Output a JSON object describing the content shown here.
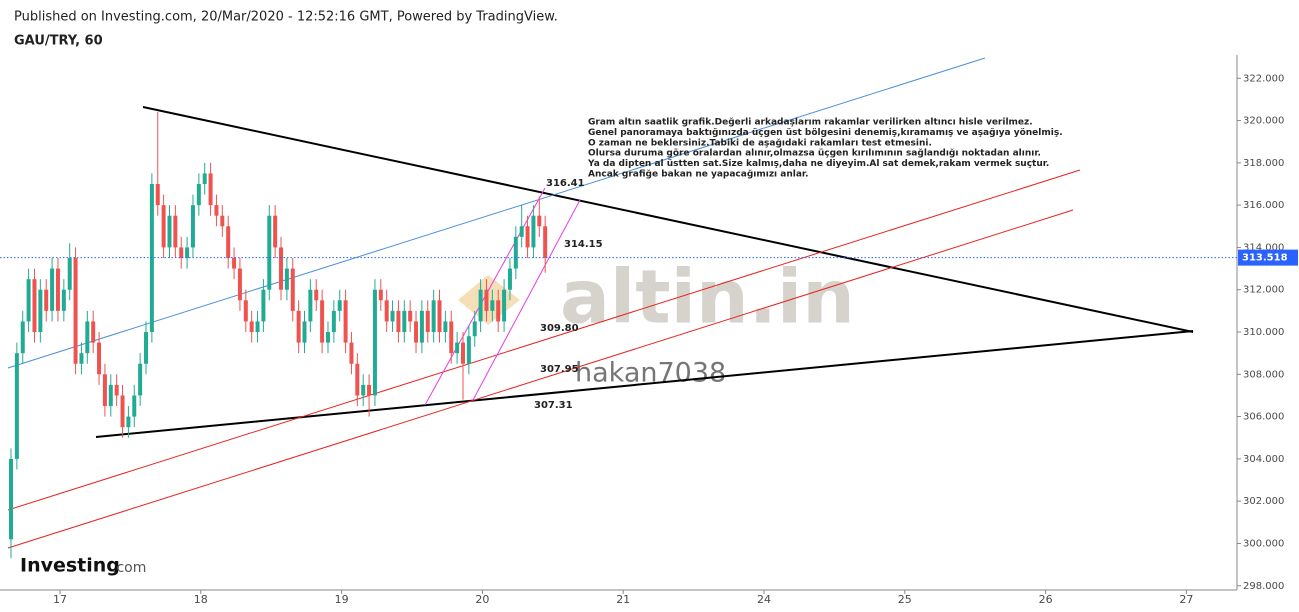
{
  "header": {
    "published": "Published on Investing.com, 20/Mar/2020 - 12:52:16 GMT, Powered by TradingView.",
    "symbol": "GAU/TRY, 60"
  },
  "watermark": "altin.in",
  "author": "hakan7038",
  "branding": [
    "Investing",
    ".com"
  ],
  "chart_data": {
    "type": "candlestick",
    "open": [
      300.2,
      304,
      309,
      310.5,
      312.5,
      310,
      312,
      311,
      313,
      311,
      312,
      313.5,
      308.5,
      309,
      310.5,
      309.5,
      308,
      306.5,
      307.5,
      307,
      305.5,
      306,
      307,
      308.5,
      310,
      317,
      316,
      314,
      315.5,
      314,
      313.5,
      314,
      316,
      317,
      317.5,
      316,
      315.5,
      315,
      313.5,
      313,
      311.5,
      310.5,
      310,
      310.5,
      312,
      315.5,
      314,
      312,
      313,
      311,
      309.5,
      310.5,
      312,
      311.5,
      309.5,
      310,
      311,
      311.5,
      309.5,
      308.5,
      307,
      307.5,
      307,
      312,
      311.5,
      310.5,
      311,
      310,
      311,
      310.5,
      309.5,
      311,
      310,
      311.5,
      310,
      310.5,
      309,
      309.5,
      308.5,
      309.8,
      310.5,
      312,
      311,
      311.5,
      310.5,
      312,
      313,
      314.5,
      315,
      314,
      315.5,
      315
    ],
    "high": [
      304.5,
      309.5,
      311,
      313,
      313,
      312.5,
      312.5,
      313.5,
      313.5,
      312.5,
      314.2,
      314,
      309.5,
      311,
      311,
      310,
      308.5,
      308,
      308,
      307.5,
      306.5,
      307.5,
      309,
      310.5,
      317.5,
      320.4,
      316.5,
      316,
      316,
      314.5,
      314.5,
      316.5,
      317.5,
      318,
      318,
      316.5,
      316,
      315.5,
      314,
      313.5,
      312,
      311,
      311,
      312.5,
      316,
      316,
      314.5,
      313.5,
      313.5,
      311.5,
      311,
      312.5,
      312.5,
      312,
      310.5,
      311.5,
      312,
      312,
      310,
      309,
      308,
      308,
      312.5,
      312.5,
      312,
      311.5,
      311.5,
      311.5,
      311.5,
      311,
      311.5,
      311.5,
      312,
      312,
      311,
      311,
      310,
      310,
      310.3,
      311,
      312.5,
      312.5,
      312,
      312,
      312.5,
      313.5,
      315,
      316,
      315.5,
      316,
      316.41,
      315.5
    ],
    "low": [
      299.3,
      303.5,
      308.5,
      310,
      309.5,
      309.5,
      310.5,
      310.5,
      310.5,
      310.5,
      311.5,
      308,
      308,
      308.5,
      309,
      307.5,
      306,
      306,
      306.5,
      305,
      305,
      305.5,
      306.5,
      308,
      309.5,
      315.5,
      313.5,
      313.5,
      313.5,
      313,
      313,
      313.5,
      315.5,
      316.5,
      315.5,
      315,
      314.5,
      313,
      312.5,
      311,
      310,
      309.5,
      309.5,
      310,
      311.5,
      313.5,
      311.5,
      311.5,
      310.5,
      309,
      309,
      310,
      311,
      309,
      309,
      309.5,
      310.5,
      309,
      308,
      306.5,
      306.5,
      306,
      306.5,
      311,
      310,
      310,
      309.5,
      309.5,
      310,
      309,
      309,
      309.5,
      309.5,
      309.5,
      309.5,
      308.5,
      308.5,
      306.8,
      308,
      309.3,
      310,
      310.5,
      310.5,
      310,
      310,
      311.5,
      312.5,
      314,
      313.5,
      313.5,
      314.5,
      312.8
    ],
    "close": [
      304,
      309,
      310.5,
      312.5,
      310,
      312,
      311,
      313,
      311,
      312,
      313.5,
      308.5,
      309,
      310.5,
      309.5,
      308,
      306.5,
      307.5,
      307,
      305.5,
      306,
      307,
      308.5,
      310,
      317,
      316,
      314,
      315.5,
      314,
      313.5,
      314,
      316,
      317,
      317.5,
      316,
      315.5,
      315,
      313.5,
      313,
      311.5,
      310.5,
      310,
      310.5,
      312,
      315.5,
      314,
      312,
      313,
      311,
      309.5,
      310.5,
      312,
      311.5,
      309.5,
      310,
      311,
      311.5,
      309.5,
      308.5,
      307,
      307.5,
      307,
      312,
      311.5,
      310.5,
      311,
      310,
      311,
      310.5,
      309.5,
      311,
      310,
      311.5,
      310,
      310.5,
      309,
      309.5,
      308.5,
      309.8,
      310.5,
      312,
      311,
      311.5,
      310.5,
      312,
      313,
      314.5,
      315,
      314,
      315.5,
      315,
      313.5
    ],
    "up_color": "#22ab94",
    "down_color": "#ef5350",
    "ylim": [
      297.8,
      323.1
    ],
    "yticks": [
      {
        "value": 298,
        "label": "298.000"
      },
      {
        "value": 300,
        "label": "300.000"
      },
      {
        "value": 302,
        "label": "302.000"
      },
      {
        "value": 304,
        "label": "304.000"
      },
      {
        "value": 306,
        "label": "306.000"
      },
      {
        "value": 308,
        "label": "308.000"
      },
      {
        "value": 310,
        "label": "310.000"
      },
      {
        "value": 312,
        "label": "312.000"
      },
      {
        "value": 314,
        "label": "314.000"
      },
      {
        "value": 316,
        "label": "316.000"
      },
      {
        "value": 318,
        "label": "318.000"
      },
      {
        "value": 320,
        "label": "320.000"
      },
      {
        "value": 322,
        "label": "322.000"
      }
    ],
    "x_labels": [
      "17",
      "18",
      "19",
      "20",
      "21",
      "24",
      "25",
      "26",
      "27"
    ],
    "last_price": 313.518,
    "last_price_color": "#2962ff",
    "annotations": [
      "316.41",
      "314.15",
      "309.80",
      "307.95",
      "307.31"
    ],
    "note": [
      "Gram altın saatlik grafik.Değerli arkadaşlarım rakamlar verilirken altıncı hisle verilmez.",
      "Genel panoramaya baktığınızda üçgen üst bölgesini denemiş,kıramamış ve aşağıya yönelmiş.",
      "O zaman ne beklersiniz.Tabiki de aşağıdaki rakamları test etmesini.",
      "Olursa duruma göre oralardan alınır,olmazsa üçgen kırılımının sağlandığı noktadan alınır.",
      "Ya da dipten al üstten sat.Size kalmış,daha ne diyeyim.Al sat  demek,rakam vermek suçtur.",
      "Ancak grafiğe bakan ne yapacağımızı anlar."
    ]
  }
}
